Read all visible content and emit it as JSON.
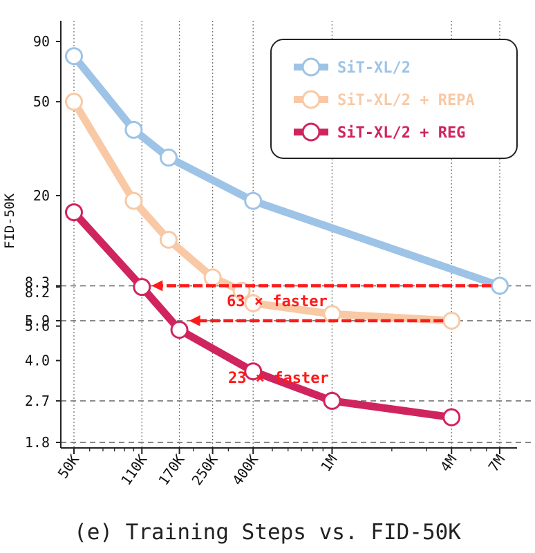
{
  "caption": "(e) Training Steps vs. FID-50K",
  "chart_data": {
    "type": "line",
    "ylabel": "FID-50K",
    "xlabel": "",
    "x_scale": "log",
    "y_scale": "log",
    "x_ticks": [
      {
        "label": "50K",
        "value": 50000
      },
      {
        "label": "110K",
        "value": 110000
      },
      {
        "label": "170K",
        "value": 170000
      },
      {
        "label": "250K",
        "value": 250000
      },
      {
        "label": "400K",
        "value": 400000
      },
      {
        "label": "1M",
        "value": 1000000
      },
      {
        "label": "4M",
        "value": 4000000
      },
      {
        "label": "7M",
        "value": 7000000
      }
    ],
    "y_ticks": [
      {
        "label": "90",
        "value": 90
      },
      {
        "label": "50",
        "value": 50
      },
      {
        "label": "20",
        "value": 20
      },
      {
        "label": "8.3",
        "value": 8.3
      },
      {
        "label": "8.2",
        "value": 8.2
      },
      {
        "label": "5.9",
        "value": 5.9
      },
      {
        "label": "5.6",
        "value": 5.6
      },
      {
        "label": "4.0",
        "value": 4.0
      },
      {
        "label": "2.7",
        "value": 2.7
      },
      {
        "label": "1.8",
        "value": 1.8
      }
    ],
    "series": [
      {
        "name": "SiT-XL/2",
        "color": "#9dc3e6",
        "points": [
          [
            50000,
            78
          ],
          [
            100000,
            38
          ],
          [
            150000,
            29
          ],
          [
            400000,
            19
          ],
          [
            7000000,
            8.3
          ]
        ]
      },
      {
        "name": "SiT-XL/2 + REPA",
        "color": "#f8c9a4",
        "points": [
          [
            50000,
            50
          ],
          [
            100000,
            19
          ],
          [
            150000,
            13
          ],
          [
            250000,
            9
          ],
          [
            350000,
            7.9
          ],
          [
            400000,
            7
          ],
          [
            1000000,
            6.3
          ],
          [
            4000000,
            5.9
          ]
        ]
      },
      {
        "name": "SiT-XL/2 + REG",
        "color": "#d0245e",
        "points": [
          [
            50000,
            17
          ],
          [
            110000,
            8.2
          ],
          [
            170000,
            5.4
          ],
          [
            400000,
            3.6
          ],
          [
            1000000,
            2.7
          ],
          [
            4000000,
            2.3
          ]
        ]
      }
    ],
    "hlines": [
      8.3,
      5.9,
      2.7,
      1.8
    ],
    "annotations": [
      {
        "text": "63 × faster",
        "x_from": 7000000,
        "x_to": 110000,
        "y": 8.3
      },
      {
        "text": "23 × faster",
        "x_from": 4000000,
        "x_to": 170000,
        "y": 5.9
      }
    ],
    "legend_position": "top-right",
    "grid": "vertical dotted"
  }
}
